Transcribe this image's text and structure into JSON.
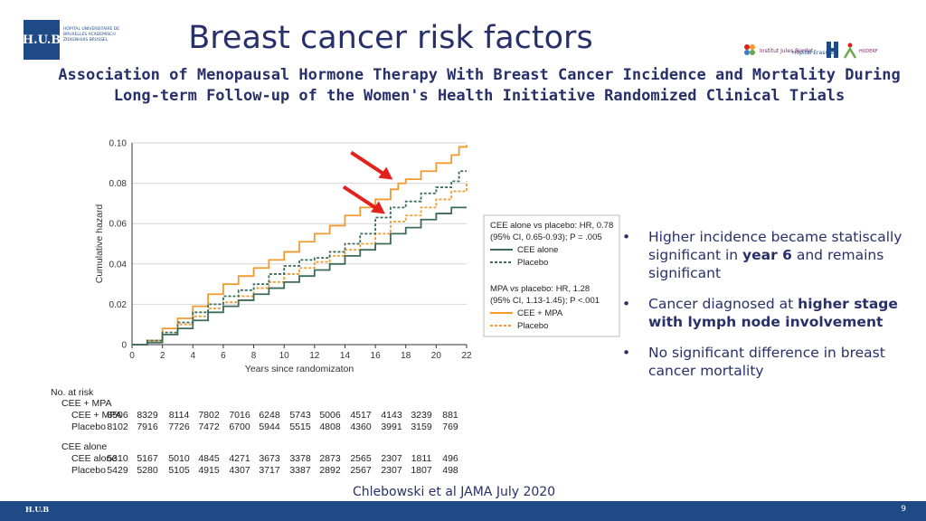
{
  "header": {
    "logo_abbr": "H.U.B",
    "logo_text": "HÔPITAL UNIVERSITAIRE DE BRUXELLES ACADEMISCH ZIEKENHUIS BRUSSEL",
    "title": "Breast cancer risk factors",
    "subtitle_line1": "Association of Menopausal Hormone Therapy With Breast Cancer Incidence and Mortality During",
    "subtitle_line2": "Long-term Follow-up of the Women's Health Initiative Randomized Clinical Trials",
    "partner_logos": [
      "Institut Jules Bordet",
      "Hôpital Erasme",
      "HUDERF"
    ]
  },
  "chart_data": {
    "type": "line",
    "title": "",
    "xlabel": "Years since randomizaton",
    "ylabel": "Cumulative hazard",
    "xlim": [
      0,
      22
    ],
    "ylim": [
      0,
      0.1
    ],
    "xticks": [
      0,
      2,
      4,
      6,
      8,
      10,
      12,
      14,
      16,
      18,
      20,
      22
    ],
    "yticks": [
      0,
      0.02,
      0.04,
      0.06,
      0.08,
      0.1
    ],
    "ytick_labels": [
      "0",
      "0.02",
      "0.04",
      "0.06",
      "0.08",
      "0.10"
    ],
    "grid": "horizontal",
    "legend_box1": {
      "title": "CEE alone vs placebo: HR, 0.78",
      "ci": "(95% CI, 0.65-0.93); P = .005",
      "entries": [
        "CEE alone",
        "Placebo"
      ]
    },
    "legend_box2": {
      "title": "MPA vs placebo: HR, 1.28",
      "ci": "(95% CI, 1.13-1.45); P <.001",
      "entries": [
        "CEE + MPA",
        "Placebo"
      ]
    },
    "series": [
      {
        "name": "CEE + MPA",
        "color": "#f29a2e",
        "style": "solid",
        "x": [
          0,
          1,
          2,
          3,
          4,
          5,
          6,
          7,
          8,
          9,
          10,
          11,
          12,
          13,
          14,
          15,
          16,
          17,
          17.5,
          18,
          19,
          20,
          21,
          21.5,
          22
        ],
        "y": [
          0,
          0.002,
          0.008,
          0.013,
          0.019,
          0.025,
          0.03,
          0.034,
          0.038,
          0.042,
          0.046,
          0.051,
          0.055,
          0.059,
          0.064,
          0.068,
          0.072,
          0.077,
          0.08,
          0.082,
          0.086,
          0.09,
          0.094,
          0.098,
          0.099
        ]
      },
      {
        "name": "Placebo (CEE + MPA trial)",
        "color": "#f29a2e",
        "style": "dashed",
        "x": [
          0,
          1,
          2,
          3,
          4,
          5,
          6,
          7,
          8,
          9,
          10,
          11,
          12,
          13,
          14,
          15,
          16,
          17,
          18,
          19,
          20,
          21,
          22
        ],
        "y": [
          0,
          0.002,
          0.006,
          0.01,
          0.014,
          0.018,
          0.021,
          0.024,
          0.028,
          0.031,
          0.035,
          0.038,
          0.041,
          0.044,
          0.047,
          0.05,
          0.055,
          0.061,
          0.064,
          0.068,
          0.072,
          0.076,
          0.081
        ]
      },
      {
        "name": "CEE alone",
        "color": "#3c6b5a",
        "style": "solid",
        "x": [
          0,
          1,
          2,
          3,
          4,
          5,
          6,
          7,
          8,
          9,
          10,
          11,
          12,
          13,
          14,
          15,
          16,
          17,
          18,
          19,
          20,
          21,
          22
        ],
        "y": [
          0,
          0.001,
          0.005,
          0.008,
          0.012,
          0.016,
          0.019,
          0.022,
          0.025,
          0.028,
          0.031,
          0.034,
          0.037,
          0.04,
          0.044,
          0.047,
          0.05,
          0.055,
          0.058,
          0.062,
          0.065,
          0.068,
          0.068
        ]
      },
      {
        "name": "Placebo (CEE alone trial)",
        "color": "#3c6b5a",
        "style": "dashed",
        "x": [
          0,
          1,
          2,
          3,
          4,
          5,
          6,
          7,
          8,
          9,
          10,
          11,
          12,
          13,
          14,
          15,
          16,
          17,
          18,
          19,
          20,
          21,
          21.5,
          22
        ],
        "y": [
          0,
          0.002,
          0.006,
          0.011,
          0.016,
          0.02,
          0.024,
          0.027,
          0.03,
          0.035,
          0.039,
          0.042,
          0.043,
          0.046,
          0.05,
          0.055,
          0.063,
          0.068,
          0.071,
          0.075,
          0.078,
          0.081,
          0.086,
          0.086
        ]
      }
    ],
    "arrows": [
      {
        "x": 17.5,
        "y": 0.08
      },
      {
        "x": 17.0,
        "y": 0.063
      }
    ]
  },
  "at_risk": {
    "heading": "No. at risk",
    "groups": [
      {
        "name": "CEE + MPA",
        "rows": [
          {
            "label": "CEE + MPA",
            "values": [
              "8506",
              "8329",
              "8114",
              "7802",
              "7016",
              "6248",
              "5743",
              "5006",
              "4517",
              "4143",
              "3239",
              "881"
            ]
          },
          {
            "label": "Placebo",
            "values": [
              "8102",
              "7916",
              "7726",
              "7472",
              "6700",
              "5944",
              "5515",
              "4808",
              "4360",
              "3991",
              "3159",
              "769"
            ]
          }
        ]
      },
      {
        "name": "CEE alone",
        "rows": [
          {
            "label": "CEE alone",
            "values": [
              "5310",
              "5167",
              "5010",
              "4845",
              "4271",
              "3673",
              "3378",
              "2873",
              "2565",
              "2307",
              "1811",
              "496"
            ]
          },
          {
            "label": "Placebo",
            "values": [
              "5429",
              "5280",
              "5105",
              "4915",
              "4307",
              "3717",
              "3387",
              "2892",
              "2567",
              "2307",
              "1807",
              "498"
            ]
          }
        ]
      }
    ]
  },
  "bullets": [
    {
      "marker": "•",
      "parts": [
        {
          "text": "Higher incidence became statiscally significant in ",
          "bold": false
        },
        {
          "text": "year 6",
          "bold": true
        },
        {
          "text": " and remains significant",
          "bold": false
        }
      ]
    },
    {
      "marker": "•",
      "parts": [
        {
          "text": "Cancer diagnosed at ",
          "bold": false
        },
        {
          "text": "higher stage with lymph node involvement",
          "bold": true
        }
      ]
    },
    {
      "marker": "•",
      "parts": [
        {
          "text": "No significant difference in breast cancer mortality",
          "bold": false
        }
      ]
    }
  ],
  "citation": "Chlebowski et al JAMA July 2020",
  "footer": {
    "logo": "H.U.B",
    "page_number": "9"
  },
  "colors": {
    "navy": "#28306a",
    "brand_blue": "#1e4a86",
    "orange": "#f29a2e",
    "green": "#3c6b5a",
    "arrow_red": "#e3211c"
  }
}
